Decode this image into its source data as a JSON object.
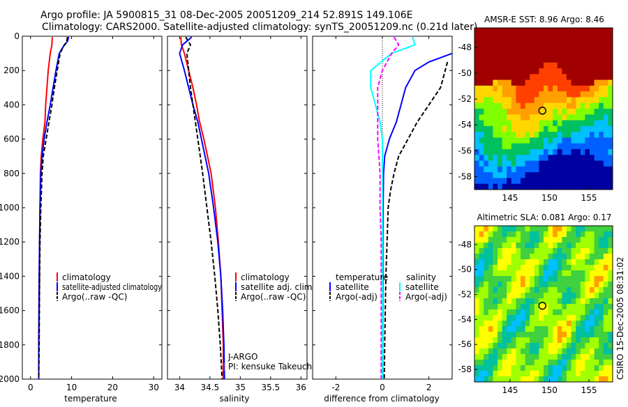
{
  "title_line1": "Argo profile: JA 5900815_31 08-Dec-2005 20051209_214 52.891S 149.106E",
  "title_line2": "Climatology: CARS2000. Satellite-adjusted climatology: synTS_20051209.nc (0.21d later)",
  "side_label": "CSIRO 15-Dec-2005 08:31:02",
  "depth_ticks": [
    "0",
    "200",
    "400",
    "600",
    "800",
    "1000",
    "1200",
    "1400",
    "1600",
    "1800",
    "2000"
  ],
  "colors": {
    "climatology": "#ff0000",
    "satellite": "#0000ff",
    "argo": "#000000",
    "cyan": "#00ffff",
    "magenta": "#ff00ff"
  },
  "chart_data": [
    {
      "type": "line",
      "id": "temperature",
      "xlabel": "temperature",
      "ylabel": "",
      "xlim": [
        -2,
        32
      ],
      "ylim": [
        2000,
        0
      ],
      "xticks": [
        "0",
        "10",
        "20",
        "30"
      ],
      "legend_position": "bottom-right",
      "series": [
        {
          "name": "climatology",
          "color": "#ff0000",
          "dash": false,
          "x": [
            5.3,
            5.2,
            4.8,
            4.3,
            4.0,
            3.7,
            3.5,
            3.0,
            2.6,
            2.4,
            2.3,
            2.2,
            2.2,
            2.1,
            2.0,
            2.0
          ],
          "y": [
            5,
            50,
            100,
            200,
            300,
            400,
            500,
            600,
            700,
            800,
            1000,
            1200,
            1400,
            1600,
            1800,
            2000
          ]
        },
        {
          "name": "satellite-adjusted climatology",
          "color": "#0000ff",
          "dash": false,
          "x": [
            9.3,
            9.0,
            8.0,
            7.0,
            6.2,
            5.5,
            4.8,
            4.0,
            3.3,
            2.8,
            2.5,
            2.3,
            2.2,
            2.1,
            2.0,
            2.0
          ],
          "y": [
            5,
            30,
            60,
            100,
            200,
            300,
            400,
            500,
            600,
            700,
            800,
            1000,
            1200,
            1400,
            1800,
            2000
          ]
        },
        {
          "name": "Argo(..raw -QC)",
          "color": "#000000",
          "dash": true,
          "x": [
            9.0,
            8.8,
            8.0,
            7.2,
            6.5,
            5.8,
            5.2,
            4.5,
            3.8,
            3.1,
            2.8,
            2.5,
            2.3,
            2.2,
            2.1,
            2.0
          ],
          "y": [
            5,
            30,
            60,
            100,
            200,
            300,
            400,
            500,
            600,
            700,
            800,
            1000,
            1200,
            1400,
            1800,
            2000
          ]
        }
      ]
    },
    {
      "type": "line",
      "id": "salinity",
      "xlabel": "salinity",
      "ylabel": "",
      "xlim": [
        33.8,
        36.1
      ],
      "ylim": [
        2000,
        0
      ],
      "xticks": [
        "34",
        "34.5",
        "35",
        "35.5",
        "36"
      ],
      "legend_position": "bottom-right",
      "series": [
        {
          "name": "climatology",
          "color": "#ff0000",
          "dash": false,
          "x": [
            34.02,
            34.03,
            34.08,
            34.15,
            34.22,
            34.28,
            34.33,
            34.4,
            34.46,
            34.52,
            34.59,
            34.64,
            34.68,
            34.7,
            34.72,
            34.72
          ],
          "y": [
            5,
            50,
            100,
            200,
            300,
            400,
            500,
            600,
            700,
            800,
            1000,
            1200,
            1400,
            1600,
            1800,
            2000
          ]
        },
        {
          "name": "satellite adj. clim.",
          "color": "#0000ff",
          "dash": false,
          "x": [
            34.2,
            34.05,
            34.0,
            34.08,
            34.15,
            34.22,
            34.3,
            34.36,
            34.42,
            34.48,
            34.56,
            34.63,
            34.68,
            34.71,
            34.73,
            34.74
          ],
          "y": [
            5,
            50,
            100,
            200,
            300,
            400,
            500,
            600,
            700,
            800,
            1000,
            1200,
            1400,
            1600,
            1800,
            2000
          ]
        },
        {
          "name": "Argo(..raw -QC)",
          "color": "#000000",
          "dash": true,
          "x": [
            34.1,
            34.18,
            34.12,
            34.15,
            34.18,
            34.22,
            34.26,
            34.3,
            34.34,
            34.38,
            34.45,
            34.52,
            34.58,
            34.63,
            34.67,
            34.7
          ],
          "y": [
            5,
            50,
            100,
            200,
            300,
            400,
            500,
            600,
            700,
            800,
            1000,
            1200,
            1400,
            1600,
            1800,
            2000
          ]
        }
      ],
      "annotations": [
        "J-ARGO",
        "PI: kensuke Takeuchi"
      ]
    },
    {
      "type": "line",
      "id": "difference",
      "xlabel": "difference from climatology",
      "ylabel": "",
      "xlim": [
        -3,
        3
      ],
      "ylim": [
        2000,
        0
      ],
      "xticks": [
        "-2",
        "0",
        "2"
      ],
      "legend_position": "bottom",
      "legend_groups": [
        "temperature",
        "salinity"
      ],
      "series": [
        {
          "name": "satellite",
          "group": "temperature",
          "color": "#0000ff",
          "dash": false,
          "x": [
            3.0,
            2.0,
            1.4,
            1.0,
            0.8,
            0.6,
            0.3,
            0.1,
            0.05,
            0.03,
            0.02,
            0.02,
            0.01,
            0.01
          ],
          "y": [
            100,
            150,
            200,
            300,
            400,
            500,
            600,
            700,
            800,
            1000,
            1200,
            1400,
            1800,
            2000
          ]
        },
        {
          "name": "satellite",
          "group": "salinity",
          "color": "#00ffff",
          "dash": false,
          "x": [
            1.3,
            1.4,
            0.4,
            -0.5,
            -0.5,
            -0.3,
            -0.1,
            0.0,
            0.0,
            0.0,
            0.0,
            0.0,
            0.0,
            0.0
          ],
          "y": [
            5,
            50,
            100,
            200,
            300,
            400,
            500,
            600,
            700,
            800,
            1000,
            1200,
            1400,
            2000
          ]
        },
        {
          "name": "Argo(-adj)",
          "group": "temperature",
          "color": "#000000",
          "dash": true,
          "x": [
            2.8,
            2.7,
            2.5,
            2.0,
            1.5,
            1.1,
            0.7,
            0.5,
            0.35,
            0.25,
            0.2,
            0.15,
            0.1,
            0.08
          ],
          "y": [
            150,
            200,
            300,
            400,
            500,
            600,
            700,
            800,
            900,
            1000,
            1200,
            1400,
            1800,
            2000
          ]
        },
        {
          "name": "Argo(-adj)",
          "group": "salinity",
          "color": "#ff00ff",
          "dash": true,
          "x": [
            0.5,
            0.7,
            0.4,
            0.0,
            -0.2,
            -0.2,
            -0.2,
            -0.2,
            -0.15,
            -0.1,
            -0.1,
            -0.05,
            -0.05,
            -0.05
          ],
          "y": [
            5,
            50,
            100,
            200,
            300,
            400,
            500,
            600,
            700,
            800,
            1000,
            1200,
            1400,
            2000
          ]
        }
      ]
    },
    {
      "type": "heatmap",
      "id": "sst-map",
      "title": "AMSR-E SST: 8.96 Argo: 8.46",
      "xlim": [
        140.5,
        158
      ],
      "ylim": [
        -59,
        -46.5
      ],
      "xticks": [
        "145",
        "150",
        "155"
      ],
      "yticks": [
        "-48",
        "-50",
        "-52",
        "-54",
        "-56",
        "-58"
      ],
      "marker": {
        "lon": 149.1,
        "lat": -52.9
      },
      "colors": [
        "#a00000",
        "#ff4000",
        "#ffa000",
        "#ffd700",
        "#7fff00",
        "#00c060",
        "#00c0ff",
        "#0060ff",
        "#0000a0"
      ]
    },
    {
      "type": "heatmap",
      "id": "sla-map",
      "title": "Altimetric SLA: 0.081 Argo: 0.17",
      "xlim": [
        140.5,
        158
      ],
      "ylim": [
        -59,
        -46.5
      ],
      "xticks": [
        "145",
        "150",
        "155"
      ],
      "yticks": [
        "-48",
        "-50",
        "-52",
        "-54",
        "-56",
        "-58"
      ],
      "marker": {
        "lon": 149.1,
        "lat": -52.9
      },
      "colors": [
        "#ff4000",
        "#ffa000",
        "#ffff00",
        "#a0ff00",
        "#40d040",
        "#00c0a0",
        "#00c0ff",
        "#0060ff"
      ]
    }
  ]
}
